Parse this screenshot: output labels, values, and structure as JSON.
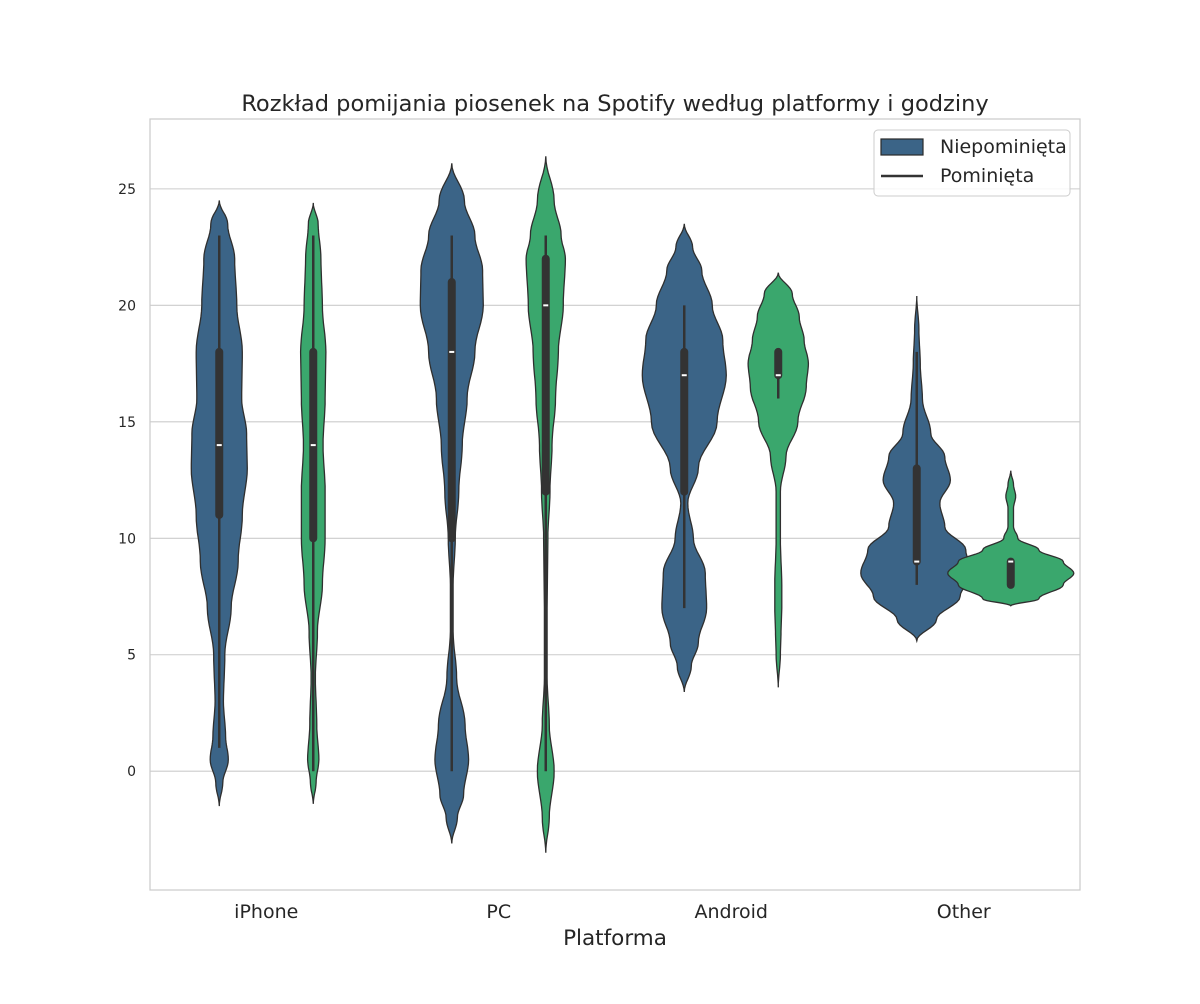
{
  "chart_data": {
    "type": "violin",
    "title": "Rozkład pomijania piosenek na Spotify według platformy i godziny",
    "xlabel": "Platforma",
    "ylabel": "",
    "categories": [
      "iPhone",
      "PC",
      "Android",
      "Other"
    ],
    "ylim": [
      -5.1,
      28.0
    ],
    "yticks": [
      0,
      5,
      10,
      15,
      20,
      25
    ],
    "grid": true,
    "legend": {
      "placement": "top-right",
      "entries": [
        "Niepominięta",
        "Pominięta"
      ]
    },
    "series": [
      {
        "name": "Niepominięta",
        "color": "#3b6487",
        "groups": [
          {
            "category": "iPhone",
            "whisker": [
              1,
              23
            ],
            "q1": 11,
            "median": 14,
            "q3": 18,
            "density": [
              [
                -1.5,
                0.0
              ],
              [
                -0.5,
                0.05
              ],
              [
                0.5,
                0.13
              ],
              [
                1.5,
                0.09
              ],
              [
                3.0,
                0.06
              ],
              [
                5.0,
                0.08
              ],
              [
                7.0,
                0.17
              ],
              [
                9.0,
                0.27
              ],
              [
                11.0,
                0.33
              ],
              [
                13.0,
                0.4
              ],
              [
                14.5,
                0.39
              ],
              [
                16.0,
                0.32
              ],
              [
                18.0,
                0.33
              ],
              [
                20.0,
                0.25
              ],
              [
                22.0,
                0.22
              ],
              [
                23.5,
                0.12
              ],
              [
                24.5,
                0.0
              ]
            ]
          },
          {
            "category": "PC",
            "whisker": [
              0,
              23
            ],
            "q1": 10,
            "median": 18,
            "q3": 21,
            "density": [
              [
                -3.1,
                0.0
              ],
              [
                -2.0,
                0.08
              ],
              [
                -1.0,
                0.17
              ],
              [
                0.5,
                0.24
              ],
              [
                2.0,
                0.19
              ],
              [
                4.0,
                0.07
              ],
              [
                6.0,
                0.02
              ],
              [
                8.0,
                0.02
              ],
              [
                10.0,
                0.05
              ],
              [
                12.0,
                0.1
              ],
              [
                14.0,
                0.15
              ],
              [
                16.0,
                0.22
              ],
              [
                18.0,
                0.33
              ],
              [
                20.0,
                0.45
              ],
              [
                21.5,
                0.44
              ],
              [
                23.0,
                0.33
              ],
              [
                24.5,
                0.18
              ],
              [
                26.1,
                0.0
              ]
            ]
          },
          {
            "category": "Android",
            "whisker": [
              7,
              20
            ],
            "q1": 12,
            "median": 17,
            "q3": 18,
            "density": [
              [
                3.4,
                0.0
              ],
              [
                4.5,
                0.1
              ],
              [
                5.5,
                0.2
              ],
              [
                7.0,
                0.32
              ],
              [
                8.5,
                0.3
              ],
              [
                10.0,
                0.13
              ],
              [
                11.5,
                0.05
              ],
              [
                13.0,
                0.2
              ],
              [
                15.0,
                0.47
              ],
              [
                17.0,
                0.6
              ],
              [
                18.5,
                0.55
              ],
              [
                20.0,
                0.4
              ],
              [
                21.5,
                0.25
              ],
              [
                22.5,
                0.12
              ],
              [
                23.5,
                0.0
              ]
            ]
          },
          {
            "category": "Other",
            "whisker": [
              8,
              18
            ],
            "q1": 9,
            "median": 9,
            "q3": 13,
            "density": [
              [
                5.6,
                0.0
              ],
              [
                6.5,
                0.28
              ],
              [
                7.5,
                0.62
              ],
              [
                8.5,
                0.8
              ],
              [
                9.5,
                0.7
              ],
              [
                10.5,
                0.4
              ],
              [
                11.5,
                0.33
              ],
              [
                12.5,
                0.48
              ],
              [
                13.5,
                0.4
              ],
              [
                14.5,
                0.2
              ],
              [
                16.0,
                0.08
              ],
              [
                17.5,
                0.05
              ],
              [
                19.0,
                0.03
              ],
              [
                20.4,
                0.0
              ]
            ]
          }
        ]
      },
      {
        "name": "Pominięta",
        "color": "#3aa76d",
        "groups": [
          {
            "category": "iPhone",
            "whisker": [
              0,
              23
            ],
            "q1": 10,
            "median": 14,
            "q3": 18,
            "density": [
              [
                -1.4,
                0.0
              ],
              [
                -0.5,
                0.04
              ],
              [
                0.5,
                0.08
              ],
              [
                2.0,
                0.05
              ],
              [
                4.0,
                0.03
              ],
              [
                6.0,
                0.06
              ],
              [
                8.0,
                0.13
              ],
              [
                10.0,
                0.17
              ],
              [
                12.0,
                0.17
              ],
              [
                14.0,
                0.14
              ],
              [
                16.0,
                0.17
              ],
              [
                18.0,
                0.18
              ],
              [
                20.0,
                0.13
              ],
              [
                22.0,
                0.11
              ],
              [
                23.5,
                0.07
              ],
              [
                24.4,
                0.0
              ]
            ]
          },
          {
            "category": "PC",
            "whisker": [
              0,
              23
            ],
            "q1": 12,
            "median": 20,
            "q3": 22,
            "density": [
              [
                -3.5,
                0.0
              ],
              [
                -2.0,
                0.05
              ],
              [
                0.0,
                0.12
              ],
              [
                2.0,
                0.05
              ],
              [
                4.0,
                0.02
              ],
              [
                7.0,
                0.02
              ],
              [
                10.0,
                0.03
              ],
              [
                12.0,
                0.06
              ],
              [
                14.0,
                0.09
              ],
              [
                16.0,
                0.14
              ],
              [
                18.0,
                0.18
              ],
              [
                20.0,
                0.25
              ],
              [
                22.0,
                0.28
              ],
              [
                23.0,
                0.22
              ],
              [
                24.5,
                0.12
              ],
              [
                26.4,
                0.0
              ]
            ]
          },
          {
            "category": "Android",
            "whisker": [
              16,
              18
            ],
            "q1": 17,
            "median": 17,
            "q3": 18,
            "density": [
              [
                3.6,
                0.0
              ],
              [
                5.0,
                0.03
              ],
              [
                6.0,
                0.04
              ],
              [
                7.0,
                0.05
              ],
              [
                8.0,
                0.05
              ],
              [
                10.0,
                0.03
              ],
              [
                12.0,
                0.03
              ],
              [
                13.5,
                0.11
              ],
              [
                15.0,
                0.28
              ],
              [
                16.5,
                0.4
              ],
              [
                17.5,
                0.43
              ],
              [
                18.5,
                0.37
              ],
              [
                19.5,
                0.3
              ],
              [
                20.5,
                0.2
              ],
              [
                21.4,
                0.0
              ]
            ]
          },
          {
            "category": "Other",
            "whisker": [
              8,
              9
            ],
            "q1": 8,
            "median": 9,
            "q3": 9,
            "density": [
              [
                7.1,
                0.0
              ],
              [
                7.4,
                0.4
              ],
              [
                8.0,
                0.75
              ],
              [
                8.5,
                0.9
              ],
              [
                9.0,
                0.75
              ],
              [
                9.5,
                0.4
              ],
              [
                10.0,
                0.1
              ],
              [
                10.5,
                0.04
              ],
              [
                11.3,
                0.04
              ],
              [
                11.8,
                0.07
              ],
              [
                12.3,
                0.04
              ],
              [
                12.9,
                0.0
              ]
            ]
          }
        ]
      }
    ]
  }
}
